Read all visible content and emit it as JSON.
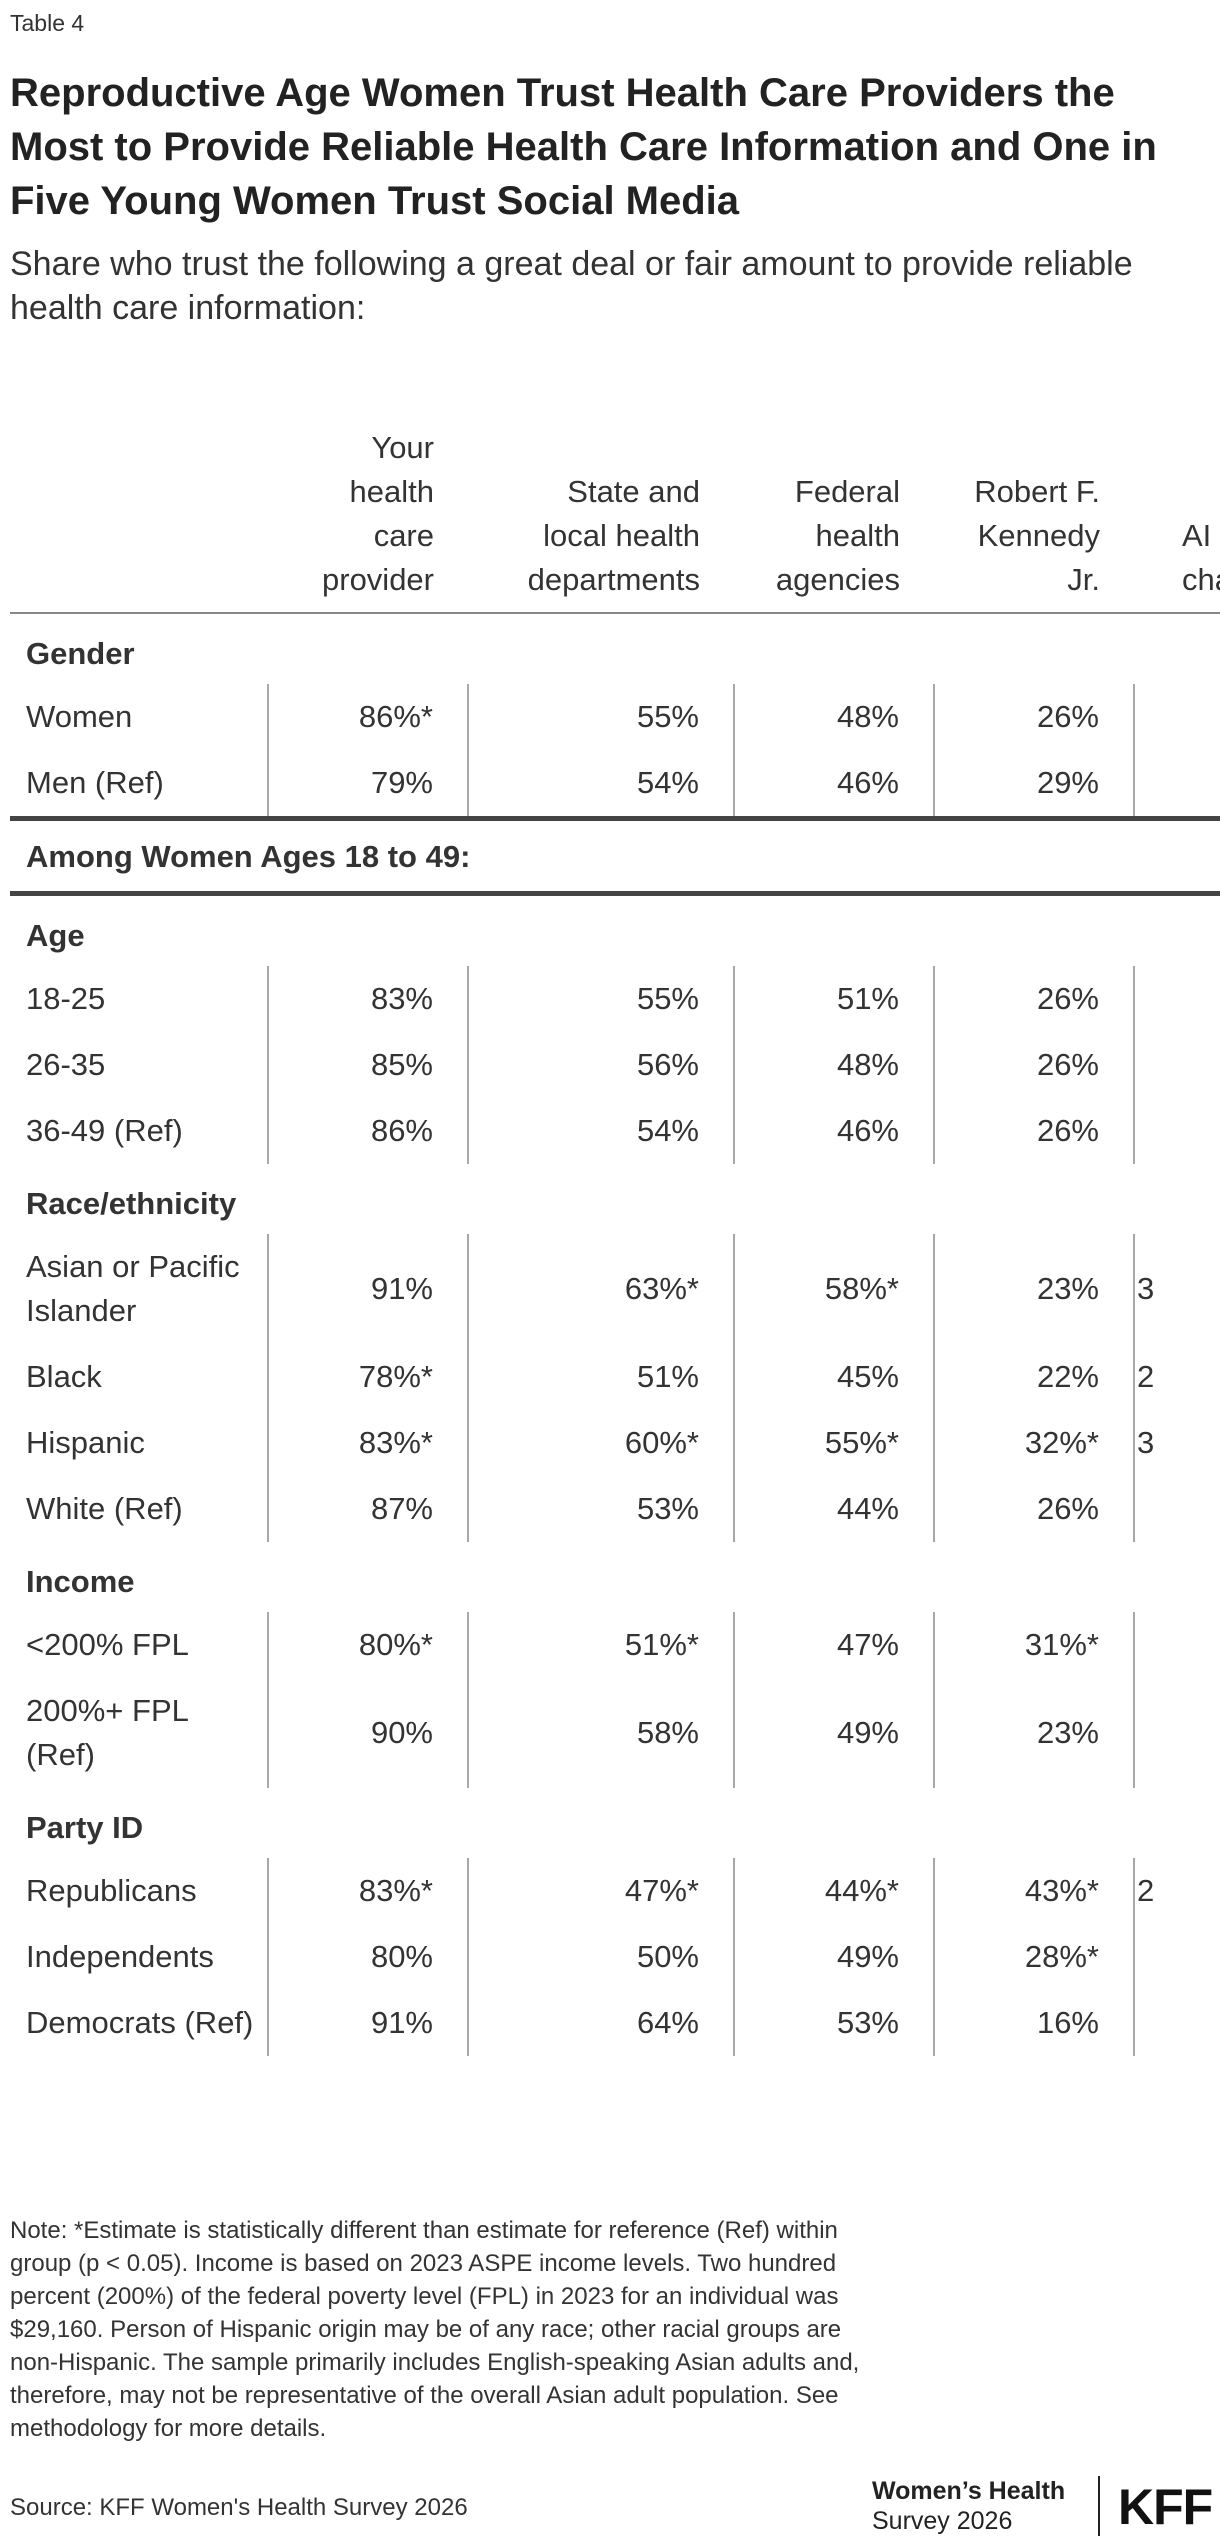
{
  "eyebrow": "Table 4",
  "title": "Reproductive Age Women Trust Health Care Providers the Most to Provide Reliable Health Care Information and One in Five Young Women Trust Social Media",
  "subtitle": "Share who trust the following a great deal or fair amount to provide reliable health care information:",
  "columns": [
    {
      "label": "Your health care provider"
    },
    {
      "label": "State and local health departments"
    },
    {
      "label": "Federal health agencies"
    },
    {
      "label": "Robert F. Kennedy Jr."
    },
    {
      "label": "AI cha"
    }
  ],
  "groups": [
    {
      "label": "Gender",
      "rows": [
        {
          "label": "Women",
          "cells": [
            "86%*",
            "55%",
            "48%",
            "26%",
            ""
          ]
        },
        {
          "label": "Men (Ref)",
          "cells": [
            "79%",
            "54%",
            "46%",
            "29%",
            ""
          ]
        }
      ]
    },
    {
      "label": "Age",
      "rows": [
        {
          "label": "18-25",
          "cells": [
            "83%",
            "55%",
            "51%",
            "26%",
            ""
          ]
        },
        {
          "label": "26-35",
          "cells": [
            "85%",
            "56%",
            "48%",
            "26%",
            ""
          ]
        },
        {
          "label": "36-49 (Ref)",
          "cells": [
            "86%",
            "54%",
            "46%",
            "26%",
            ""
          ]
        }
      ]
    },
    {
      "label": "Race/ethnicity",
      "rows": [
        {
          "label": "Asian or Pacific Islander",
          "cells": [
            "91%",
            "63%*",
            "58%*",
            "23%",
            "3"
          ]
        },
        {
          "label": "Black",
          "cells": [
            "78%*",
            "51%",
            "45%",
            "22%",
            "2"
          ]
        },
        {
          "label": "Hispanic",
          "cells": [
            "83%*",
            "60%*",
            "55%*",
            "32%*",
            "3"
          ]
        },
        {
          "label": "White (Ref)",
          "cells": [
            "87%",
            "53%",
            "44%",
            "26%",
            ""
          ]
        }
      ]
    },
    {
      "label": "Income",
      "rows": [
        {
          "label": "<200% FPL",
          "cells": [
            "80%*",
            "51%*",
            "47%",
            "31%*",
            ""
          ]
        },
        {
          "label": "200%+ FPL (Ref)",
          "cells": [
            "90%",
            "58%",
            "49%",
            "23%",
            ""
          ]
        }
      ]
    },
    {
      "label": "Party ID",
      "rows": [
        {
          "label": "Republicans",
          "cells": [
            "83%*",
            "47%*",
            "44%*",
            "43%*",
            "2"
          ]
        },
        {
          "label": "Independents",
          "cells": [
            "80%",
            "50%",
            "49%",
            "28%*",
            ""
          ]
        },
        {
          "label": "Democrats (Ref)",
          "cells": [
            "91%",
            "64%",
            "53%",
            "16%",
            ""
          ]
        }
      ]
    }
  ],
  "section_label": "Among Women Ages 18 to 49:",
  "note": "Note: *Estimate is statistically different than estimate for reference (Ref) within group (p < 0.05). Income is based on 2023 ASPE income levels. Two hundred percent (200%) of the federal poverty level (FPL) in 2023 for an individual was $29,160. Person of Hispanic origin may be of any race; other racial groups are non-Hispanic. The sample primarily includes English-speaking Asian adults and, therefore, may not be representative of the overall Asian adult population. See methodology for more details.",
  "source": "Source: KFF Women's Health Survey 2026",
  "brand": {
    "survey_line1": "Women’s Health",
    "survey_line2": "Survey 2026",
    "logo": "KFF"
  }
}
